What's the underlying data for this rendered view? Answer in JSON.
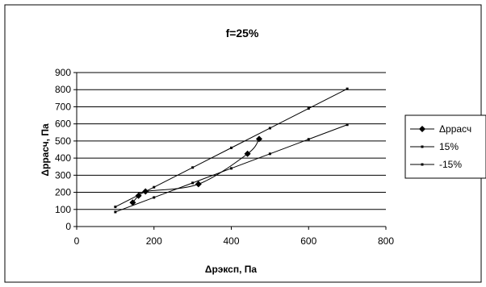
{
  "chart_data": {
    "type": "scatter",
    "title": "f=25%",
    "xlabel": "Δрэксп, Па",
    "ylabel": "Δррасч, Па",
    "xlim": [
      0,
      800
    ],
    "ylim": [
      0,
      900
    ],
    "x_ticks": [
      0,
      200,
      400,
      600,
      800
    ],
    "y_ticks": [
      0,
      100,
      200,
      300,
      400,
      500,
      600,
      700,
      800,
      900
    ],
    "grid": "horizontal",
    "legend_position": "right",
    "series": [
      {
        "name": "Δррасч",
        "style": "smooth-line-diamond",
        "color": "#000000",
        "points": [
          [
            145,
            140
          ],
          [
            160,
            180
          ],
          [
            178,
            205
          ],
          [
            315,
            248
          ],
          [
            442,
            425
          ],
          [
            472,
            512
          ]
        ]
      },
      {
        "name": "15%",
        "style": "line-dot",
        "color": "#000000",
        "points": [
          [
            100,
            115
          ],
          [
            200,
            230
          ],
          [
            300,
            345
          ],
          [
            400,
            460
          ],
          [
            500,
            575
          ],
          [
            600,
            690
          ],
          [
            700,
            805
          ]
        ]
      },
      {
        "name": "-15%",
        "style": "line-dot",
        "color": "#000000",
        "points": [
          [
            100,
            85
          ],
          [
            200,
            170
          ],
          [
            300,
            255
          ],
          [
            400,
            340
          ],
          [
            500,
            425
          ],
          [
            600,
            510
          ],
          [
            700,
            595
          ]
        ]
      }
    ]
  }
}
